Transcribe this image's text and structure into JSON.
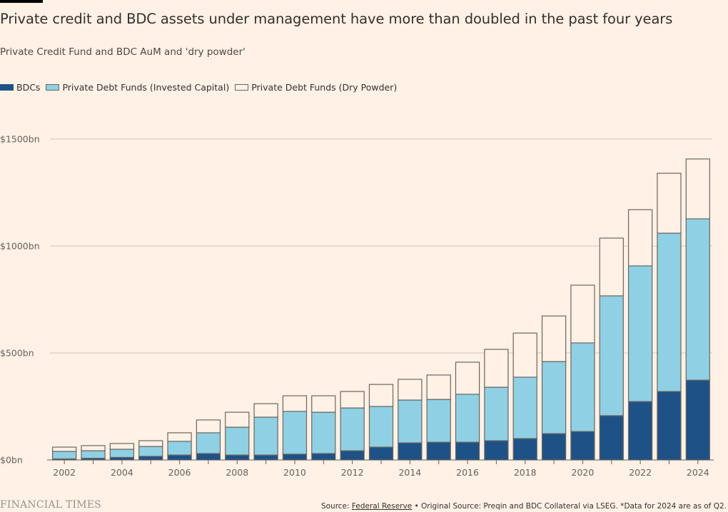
{
  "header": {
    "title": "Private credit and BDC assets under management have more than doubled in the past four years",
    "subtitle": "Private Credit Fund and BDC AuM and 'dry powder'"
  },
  "footer": {
    "logo": "FINANCIAL TIMES",
    "source_prefix": "Source: ",
    "source_link": "Federal Reserve",
    "source_suffix": " • Original Source: Preqin and BDC Collateral via LSEG. *Data for 2024 are as of Q2."
  },
  "colors": {
    "bdc": "#1e5287",
    "invested": "#8fd0e4",
    "dry_powder": "#fff1e5",
    "bar_outline": "#6b6560",
    "grid": "#cfc5bc",
    "background": "#fff1e5"
  },
  "chart_data": {
    "type": "bar",
    "stacked": true,
    "title": "Private credit and BDC assets under management have more than doubled in the past four years",
    "subtitle": "Private Credit Fund and BDC AuM and 'dry powder'",
    "xlabel": "",
    "ylabel": "",
    "ylim": [
      0,
      1500
    ],
    "yticks": [
      0,
      500,
      1000,
      1500
    ],
    "ytick_labels": [
      "$0bn",
      "$500bn",
      "$1000bn",
      "$1500bn"
    ],
    "grid": true,
    "legend_position": "top-left",
    "categories": [
      "2002",
      "2003",
      "2004",
      "2005",
      "2006",
      "2007",
      "2008",
      "2009",
      "2010",
      "2011",
      "2012",
      "2013",
      "2014",
      "2015",
      "2016",
      "2017",
      "2018",
      "2019",
      "2020",
      "2021",
      "2022",
      "2023",
      "2024"
    ],
    "xtick_labels": [
      "2002",
      "2004",
      "2006",
      "2008",
      "2010",
      "2012",
      "2014",
      "2016",
      "2018",
      "2020",
      "2022",
      "2024"
    ],
    "units": "$bn",
    "series": [
      {
        "name": "BDCs",
        "values": [
          5,
          8,
          12,
          17,
          23,
          30,
          23,
          23,
          27,
          30,
          43,
          60,
          80,
          83,
          83,
          90,
          100,
          123,
          133,
          207,
          273,
          320,
          373
        ]
      },
      {
        "name": "Private Debt Funds (Invested Capital)",
        "values": [
          35,
          35,
          38,
          46,
          64,
          97,
          130,
          177,
          200,
          193,
          200,
          190,
          200,
          200,
          224,
          250,
          287,
          337,
          414,
          560,
          634,
          740,
          754
        ]
      },
      {
        "name": "Private Debt Funds (Dry Powder)",
        "values": [
          20,
          24,
          27,
          27,
          40,
          60,
          70,
          63,
          73,
          77,
          77,
          103,
          97,
          114,
          150,
          177,
          206,
          213,
          270,
          270,
          263,
          280,
          280
        ]
      }
    ],
    "annotation": "*Data for 2024 are as of Q2."
  }
}
